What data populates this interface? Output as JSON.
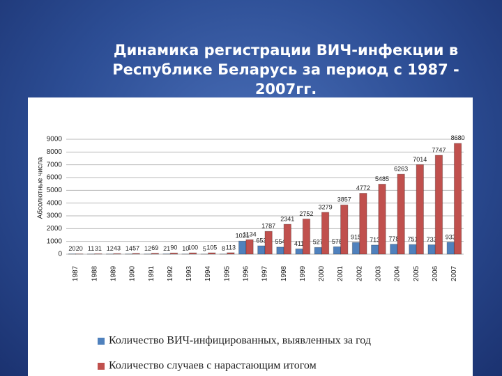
{
  "chart_data": {
    "type": "bar",
    "title": "Динамика регистрации ВИЧ-инфекции в Республике Беларусь за период с 1987 - 2007гг.",
    "y_label": "Абсолютные числа",
    "categories": [
      "1987",
      "1988",
      "1989",
      "1990",
      "1991",
      "1992",
      "1993",
      "1994",
      "1995",
      "1996",
      "1997",
      "1998",
      "1999",
      "2000",
      "2001",
      "2002",
      "2003",
      "2004",
      "2005",
      "2006",
      "2007"
    ],
    "series": [
      {
        "name": "Количество ВИЧ-инфицированных, выявленных за год",
        "color": "#4f81bd",
        "values": [
          20,
          11,
          12,
          14,
          12,
          21,
          10,
          5,
          8,
          1021,
          653,
          554,
          411,
          527,
          578,
          915,
          713,
          778,
          751,
          733,
          933
        ]
      },
      {
        "name": "Количество случаев с нарастающим итогом",
        "color": "#c0504d",
        "values": [
          20,
          31,
          43,
          57,
          69,
          90,
          100,
          105,
          113,
          1134,
          1787,
          2341,
          2752,
          3279,
          3857,
          4772,
          5485,
          6263,
          7014,
          7747,
          8680
        ]
      }
    ],
    "ylim": [
      0,
      9000
    ],
    "yticks": [
      0,
      1000,
      2000,
      3000,
      4000,
      5000,
      6000,
      7000,
      8000,
      9000
    ],
    "grid": true
  }
}
